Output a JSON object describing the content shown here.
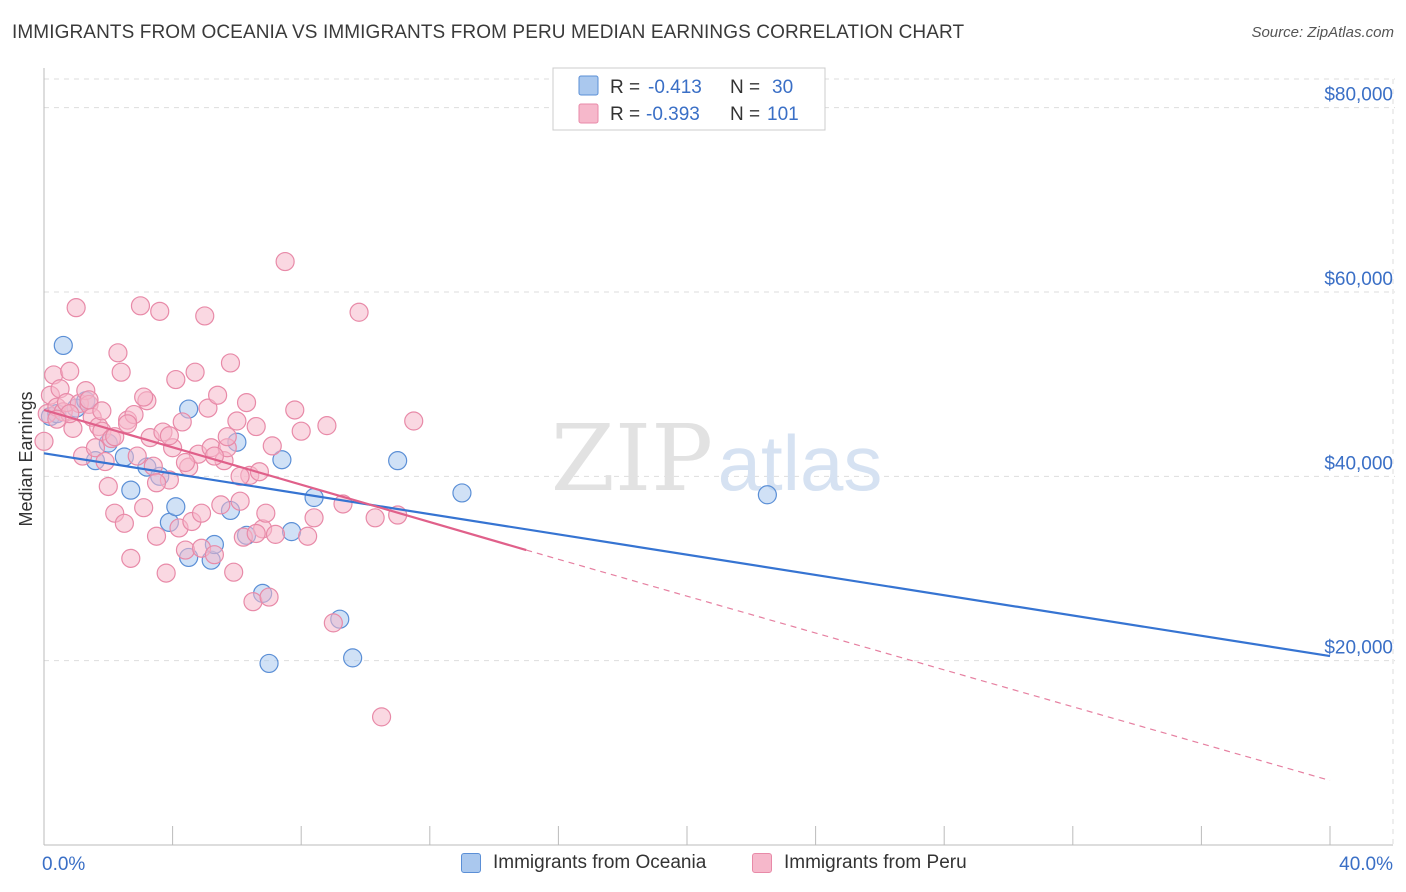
{
  "title": "IMMIGRANTS FROM OCEANIA VS IMMIGRANTS FROM PERU MEDIAN EARNINGS CORRELATION CHART",
  "source": "Source: ZipAtlas.com",
  "watermark": {
    "zip": "ZIP",
    "atlas": "atlas"
  },
  "colors": {
    "oceania_fill": "#aac8ee",
    "oceania_stroke": "#5b8fd6",
    "oceania_line": "#3674d2",
    "peru_fill": "#f6b8cb",
    "peru_stroke": "#e88aa8",
    "peru_line": "#e0608a",
    "axis_value": "#3a6fc6",
    "grid": "#dddddd"
  },
  "legend_top": {
    "rows": [
      {
        "r_label": "R =",
        "r_value": "-0.413",
        "n_label": "N =",
        "n_value": "30"
      },
      {
        "r_label": "R =",
        "r_value": "-0.393",
        "n_label": "N =",
        "n_value": "101"
      }
    ]
  },
  "legend_bottom": {
    "oceania": "Immigrants from Oceania",
    "peru": "Immigrants from Peru"
  },
  "chart_data": {
    "type": "scatter",
    "xlabel": "",
    "ylabel": "Median Earnings",
    "xlim": [
      0,
      0.4
    ],
    "ylim": [
      0,
      83000
    ],
    "x_tick_labels": [
      "0.0%",
      "40.0%"
    ],
    "y_ticks": [
      20000,
      40000,
      60000,
      80000
    ],
    "y_tick_labels": [
      "$20,000",
      "$40,000",
      "$60,000",
      "$80,000"
    ],
    "grid": true,
    "legend_position": "top-center",
    "series": [
      {
        "name": "Immigrants from Oceania",
        "r": -0.413,
        "n": 30,
        "trend": {
          "x0": 0.0,
          "y0": 42500,
          "x1": 0.4,
          "y1": 20500,
          "dashed_to": null
        },
        "points": [
          [
            0.002,
            46500
          ],
          [
            0.006,
            54200
          ],
          [
            0.01,
            47400
          ],
          [
            0.013,
            48200
          ],
          [
            0.016,
            41700
          ],
          [
            0.02,
            43600
          ],
          [
            0.025,
            42100
          ],
          [
            0.027,
            38500
          ],
          [
            0.032,
            41000
          ],
          [
            0.036,
            40000
          ],
          [
            0.039,
            35000
          ],
          [
            0.041,
            36700
          ],
          [
            0.045,
            31200
          ],
          [
            0.045,
            47300
          ],
          [
            0.052,
            30900
          ],
          [
            0.053,
            32600
          ],
          [
            0.058,
            36300
          ],
          [
            0.06,
            43700
          ],
          [
            0.063,
            33600
          ],
          [
            0.068,
            27300
          ],
          [
            0.07,
            19700
          ],
          [
            0.074,
            41800
          ],
          [
            0.077,
            34000
          ],
          [
            0.084,
            37700
          ],
          [
            0.092,
            24500
          ],
          [
            0.096,
            20300
          ],
          [
            0.11,
            41700
          ],
          [
            0.13,
            38200
          ],
          [
            0.225,
            38000
          ],
          [
            0.004,
            46800
          ]
        ]
      },
      {
        "name": "Immigrants from Peru",
        "r": -0.393,
        "n": 101,
        "trend": {
          "x0": 0.0,
          "y0": 47200,
          "x1": 0.15,
          "y1": 32000,
          "dashed_to": {
            "x": 0.4,
            "y": 7000
          }
        },
        "points": [
          [
            0.0,
            43800
          ],
          [
            0.001,
            46800
          ],
          [
            0.002,
            48800
          ],
          [
            0.003,
            51000
          ],
          [
            0.004,
            47500
          ],
          [
            0.005,
            49500
          ],
          [
            0.006,
            47000
          ],
          [
            0.007,
            48000
          ],
          [
            0.008,
            51400
          ],
          [
            0.009,
            45200
          ],
          [
            0.01,
            58300
          ],
          [
            0.011,
            47900
          ],
          [
            0.012,
            42200
          ],
          [
            0.013,
            49300
          ],
          [
            0.014,
            47800
          ],
          [
            0.015,
            46400
          ],
          [
            0.016,
            43100
          ],
          [
            0.017,
            45400
          ],
          [
            0.018,
            44900
          ],
          [
            0.019,
            41600
          ],
          [
            0.02,
            38900
          ],
          [
            0.021,
            44100
          ],
          [
            0.022,
            36000
          ],
          [
            0.023,
            53400
          ],
          [
            0.024,
            51300
          ],
          [
            0.025,
            34900
          ],
          [
            0.026,
            46100
          ],
          [
            0.027,
            31100
          ],
          [
            0.028,
            46700
          ],
          [
            0.029,
            42200
          ],
          [
            0.03,
            58500
          ],
          [
            0.031,
            36600
          ],
          [
            0.032,
            48200
          ],
          [
            0.033,
            44200
          ],
          [
            0.034,
            41100
          ],
          [
            0.035,
            33500
          ],
          [
            0.036,
            57900
          ],
          [
            0.037,
            44800
          ],
          [
            0.038,
            29500
          ],
          [
            0.039,
            39600
          ],
          [
            0.04,
            43100
          ],
          [
            0.041,
            50500
          ],
          [
            0.042,
            34400
          ],
          [
            0.043,
            45900
          ],
          [
            0.044,
            32000
          ],
          [
            0.045,
            41000
          ],
          [
            0.046,
            35100
          ],
          [
            0.047,
            51300
          ],
          [
            0.048,
            42400
          ],
          [
            0.049,
            32200
          ],
          [
            0.05,
            57400
          ],
          [
            0.051,
            47400
          ],
          [
            0.052,
            43100
          ],
          [
            0.053,
            31500
          ],
          [
            0.054,
            48800
          ],
          [
            0.055,
            36900
          ],
          [
            0.056,
            41700
          ],
          [
            0.057,
            43100
          ],
          [
            0.058,
            52300
          ],
          [
            0.059,
            29600
          ],
          [
            0.06,
            46000
          ],
          [
            0.061,
            37300
          ],
          [
            0.062,
            33400
          ],
          [
            0.063,
            48000
          ],
          [
            0.064,
            40100
          ],
          [
            0.065,
            26400
          ],
          [
            0.066,
            45400
          ],
          [
            0.067,
            40500
          ],
          [
            0.068,
            34300
          ],
          [
            0.069,
            36000
          ],
          [
            0.07,
            26900
          ],
          [
            0.071,
            43300
          ],
          [
            0.072,
            33700
          ],
          [
            0.075,
            63300
          ],
          [
            0.078,
            47200
          ],
          [
            0.08,
            44900
          ],
          [
            0.082,
            33500
          ],
          [
            0.084,
            35500
          ],
          [
            0.088,
            45500
          ],
          [
            0.09,
            24100
          ],
          [
            0.093,
            37000
          ],
          [
            0.098,
            57800
          ],
          [
            0.103,
            35500
          ],
          [
            0.105,
            13900
          ],
          [
            0.11,
            35800
          ],
          [
            0.115,
            46000
          ],
          [
            0.008,
            46800
          ],
          [
            0.014,
            48300
          ],
          [
            0.018,
            47100
          ],
          [
            0.022,
            44300
          ],
          [
            0.026,
            45700
          ],
          [
            0.031,
            48600
          ],
          [
            0.035,
            39300
          ],
          [
            0.039,
            44400
          ],
          [
            0.044,
            41500
          ],
          [
            0.049,
            36000
          ],
          [
            0.053,
            42200
          ],
          [
            0.057,
            44300
          ],
          [
            0.061,
            40000
          ],
          [
            0.066,
            33800
          ],
          [
            0.004,
            46200
          ]
        ]
      }
    ]
  }
}
